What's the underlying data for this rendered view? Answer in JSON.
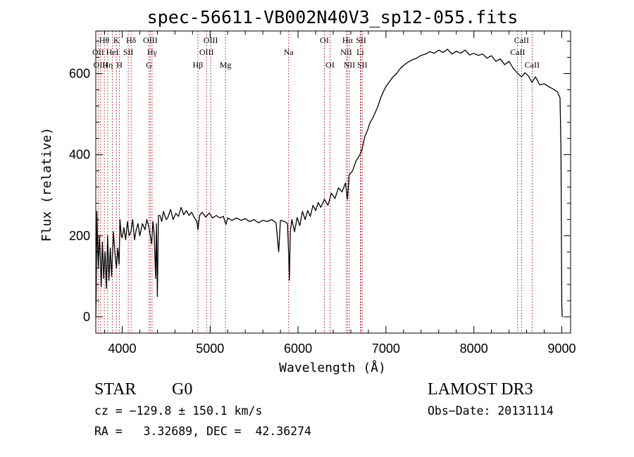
{
  "chart_data": {
    "type": "line",
    "title": "spec-56611-VB002N40V3_sp12-055.fits",
    "xlabel": "Wavelength (Å)",
    "ylabel": "Flux (relative)",
    "xlim": [
      3700,
      9100
    ],
    "ylim": [
      -40,
      705
    ],
    "xticks": [
      4000,
      5000,
      6000,
      7000,
      8000,
      9000
    ],
    "yticks": [
      0,
      200,
      400,
      600
    ],
    "series": [
      {
        "name": "flux",
        "points": [
          [
            3700,
            0
          ],
          [
            3705,
            65
          ],
          [
            3712,
            260
          ],
          [
            3720,
            180
          ],
          [
            3730,
            120
          ],
          [
            3740,
            200
          ],
          [
            3752,
            145
          ],
          [
            3762,
            75
          ],
          [
            3775,
            185
          ],
          [
            3790,
            95
          ],
          [
            3805,
            160
          ],
          [
            3820,
            70
          ],
          [
            3835,
            200
          ],
          [
            3850,
            90
          ],
          [
            3865,
            170
          ],
          [
            3880,
            100
          ],
          [
            3900,
            210
          ],
          [
            3920,
            150
          ],
          [
            3935,
            120
          ],
          [
            3950,
            170
          ],
          [
            3965,
            130
          ],
          [
            3975,
            240
          ],
          [
            3990,
            200
          ],
          [
            4000,
            195
          ],
          [
            4020,
            220
          ],
          [
            4040,
            190
          ],
          [
            4060,
            235
          ],
          [
            4080,
            200
          ],
          [
            4100,
            210
          ],
          [
            4120,
            240
          ],
          [
            4140,
            190
          ],
          [
            4160,
            215
          ],
          [
            4180,
            230
          ],
          [
            4200,
            200
          ],
          [
            4230,
            230
          ],
          [
            4260,
            215
          ],
          [
            4280,
            240
          ],
          [
            4300,
            225
          ],
          [
            4320,
            200
          ],
          [
            4335,
            180
          ],
          [
            4350,
            235
          ],
          [
            4365,
            200
          ],
          [
            4380,
            95
          ],
          [
            4390,
            230
          ],
          [
            4400,
            50
          ],
          [
            4412,
            250
          ],
          [
            4430,
            250
          ],
          [
            4450,
            235
          ],
          [
            4470,
            260
          ],
          [
            4500,
            240
          ],
          [
            4520,
            245
          ],
          [
            4550,
            265
          ],
          [
            4580,
            240
          ],
          [
            4610,
            255
          ],
          [
            4640,
            248
          ],
          [
            4670,
            270
          ],
          [
            4700,
            252
          ],
          [
            4730,
            262
          ],
          [
            4760,
            250
          ],
          [
            4790,
            258
          ],
          [
            4820,
            245
          ],
          [
            4850,
            235
          ],
          [
            4862,
            215
          ],
          [
            4880,
            250
          ],
          [
            4910,
            258
          ],
          [
            4950,
            246
          ],
          [
            4990,
            256
          ],
          [
            5030,
            244
          ],
          [
            5070,
            250
          ],
          [
            5110,
            244
          ],
          [
            5150,
            248
          ],
          [
            5180,
            228
          ],
          [
            5200,
            244
          ],
          [
            5250,
            238
          ],
          [
            5300,
            244
          ],
          [
            5350,
            238
          ],
          [
            5400,
            242
          ],
          [
            5450,
            235
          ],
          [
            5500,
            240
          ],
          [
            5550,
            232
          ],
          [
            5600,
            238
          ],
          [
            5650,
            235
          ],
          [
            5700,
            240
          ],
          [
            5750,
            232
          ],
          [
            5780,
            160
          ],
          [
            5800,
            238
          ],
          [
            5850,
            235
          ],
          [
            5880,
            230
          ],
          [
            5895,
            145
          ],
          [
            5902,
            90
          ],
          [
            5912,
            210
          ],
          [
            5930,
            240
          ],
          [
            5960,
            210
          ],
          [
            5990,
            245
          ],
          [
            6020,
            225
          ],
          [
            6050,
            260
          ],
          [
            6080,
            240
          ],
          [
            6110,
            262
          ],
          [
            6140,
            248
          ],
          [
            6170,
            275
          ],
          [
            6200,
            262
          ],
          [
            6230,
            282
          ],
          [
            6260,
            270
          ],
          [
            6300,
            290
          ],
          [
            6340,
            275
          ],
          [
            6380,
            305
          ],
          [
            6420,
            292
          ],
          [
            6460,
            318
          ],
          [
            6500,
            308
          ],
          [
            6540,
            330
          ],
          [
            6563,
            290
          ],
          [
            6580,
            350
          ],
          [
            6620,
            360
          ],
          [
            6660,
            385
          ],
          [
            6700,
            398
          ],
          [
            6730,
            415
          ],
          [
            6760,
            445
          ],
          [
            6790,
            460
          ],
          [
            6820,
            480
          ],
          [
            6850,
            490
          ],
          [
            6880,
            505
          ],
          [
            6910,
            520
          ],
          [
            6940,
            540
          ],
          [
            6970,
            555
          ],
          [
            7000,
            568
          ],
          [
            7040,
            580
          ],
          [
            7080,
            592
          ],
          [
            7120,
            600
          ],
          [
            7160,
            612
          ],
          [
            7200,
            620
          ],
          [
            7250,
            628
          ],
          [
            7300,
            634
          ],
          [
            7350,
            638
          ],
          [
            7400,
            645
          ],
          [
            7450,
            648
          ],
          [
            7500,
            654
          ],
          [
            7550,
            650
          ],
          [
            7600,
            658
          ],
          [
            7650,
            652
          ],
          [
            7700,
            660
          ],
          [
            7750,
            648
          ],
          [
            7800,
            655
          ],
          [
            7850,
            650
          ],
          [
            7900,
            658
          ],
          [
            7950,
            646
          ],
          [
            8000,
            650
          ],
          [
            8050,
            645
          ],
          [
            8100,
            648
          ],
          [
            8150,
            638
          ],
          [
            8200,
            644
          ],
          [
            8250,
            630
          ],
          [
            8300,
            636
          ],
          [
            8350,
            622
          ],
          [
            8400,
            630
          ],
          [
            8450,
            612
          ],
          [
            8500,
            600
          ],
          [
            8542,
            592
          ],
          [
            8580,
            602
          ],
          [
            8620,
            594
          ],
          [
            8662,
            578
          ],
          [
            8700,
            592
          ],
          [
            8750,
            572
          ],
          [
            8800,
            575
          ],
          [
            8850,
            568
          ],
          [
            8900,
            562
          ],
          [
            8950,
            555
          ],
          [
            8980,
            540
          ],
          [
            8990,
            420
          ],
          [
            9000,
            30
          ],
          [
            9005,
            0
          ]
        ]
      }
    ],
    "spectral_lines": [
      {
        "label": "Hθ",
        "x": 3797,
        "row": 1
      },
      {
        "label": "OII",
        "x": 3727,
        "row": 2
      },
      {
        "label": "OIII",
        "x": 3755,
        "row": 3
      },
      {
        "label": "Hη",
        "x": 3835,
        "row": 3
      },
      {
        "label": "HeI",
        "x": 3889,
        "row": 2
      },
      {
        "label": "K",
        "x": 3934,
        "row": 1
      },
      {
        "label": "H",
        "x": 3969,
        "row": 3
      },
      {
        "label": "SII",
        "x": 4069,
        "row": 2
      },
      {
        "label": "Hδ",
        "x": 4102,
        "row": 1
      },
      {
        "label": "OIII",
        "x": 4320,
        "row": 1
      },
      {
        "label": "Hγ",
        "x": 4340,
        "row": 2
      },
      {
        "label": "G",
        "x": 4306,
        "row": 3
      },
      {
        "label": "Hβ",
        "x": 4861,
        "row": 3
      },
      {
        "label": "OIII",
        "x": 5007,
        "row": 1
      },
      {
        "label": "OIII",
        "x": 4959,
        "row": 2
      },
      {
        "label": "Mg",
        "x": 5175,
        "row": 3
      },
      {
        "label": "Na",
        "x": 5893,
        "row": 2
      },
      {
        "label": "OI",
        "x": 6300,
        "row": 1
      },
      {
        "label": "OI",
        "x": 6364,
        "row": 3
      },
      {
        "label": "Hα",
        "x": 6563,
        "row": 1
      },
      {
        "label": "NII",
        "x": 6548,
        "row": 2
      },
      {
        "label": "NII",
        "x": 6584,
        "row": 3
      },
      {
        "label": "SII",
        "x": 6717,
        "row": 1
      },
      {
        "label": "Li",
        "x": 6708,
        "row": 2
      },
      {
        "label": "SII",
        "x": 6731,
        "row": 3
      },
      {
        "label": "CaII",
        "x": 8542,
        "row": 1
      },
      {
        "label": "CaII",
        "x": 8498,
        "row": 2
      },
      {
        "label": "CaII",
        "x": 8662,
        "row": 3
      }
    ]
  },
  "info": {
    "object_class": "STAR",
    "subclass": "G0",
    "survey": "LAMOST DR3",
    "cz_line": "cz = −129.8 ± 150.1 km/s",
    "obs_date_line": "Obs−Date: 20131114",
    "coords_line": "RA =   3.32689, DEC =  42.36274"
  },
  "colors": {
    "line_marker": "#b22222",
    "spectrum": "#000000"
  }
}
